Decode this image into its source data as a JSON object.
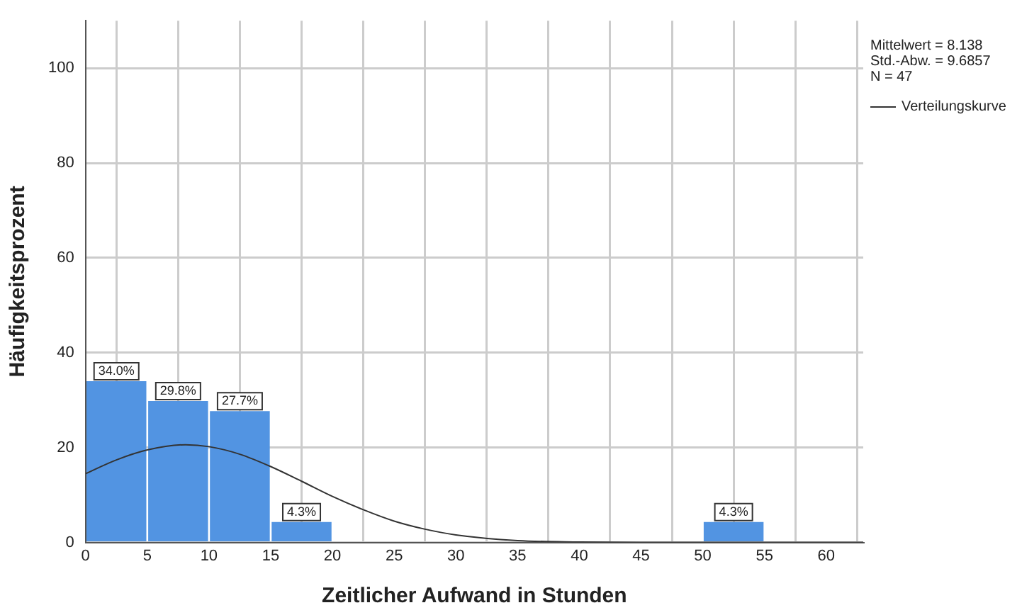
{
  "chart_data": {
    "type": "histogram",
    "xlabel": "Zeitlicher Aufwand in Stunden",
    "ylabel": "Häufigkeitsprozent",
    "bins": [
      0,
      5,
      10,
      15,
      20,
      25,
      30,
      35,
      40,
      45,
      50,
      55
    ],
    "values": [
      34.0,
      29.8,
      27.7,
      4.3,
      0,
      0,
      0,
      0,
      0,
      0,
      4.3
    ],
    "value_labels": [
      "34.0%",
      "29.8%",
      "27.7%",
      "4.3%",
      null,
      null,
      null,
      null,
      null,
      null,
      "4.3%"
    ],
    "color": "#5294e2",
    "series": [
      {
        "type": "line",
        "name": "Verteilungskurve",
        "color": "#333333",
        "x": [
          0,
          2.5,
          5,
          8.1,
          10,
          12.5,
          15,
          17.5,
          20,
          22.5,
          25,
          27.5,
          30,
          35,
          40,
          45,
          50,
          55,
          63
        ],
        "values": [
          14.5,
          17.4,
          19.5,
          20.6,
          20.2,
          18.6,
          16.0,
          12.9,
          9.7,
          6.9,
          4.5,
          2.8,
          1.6,
          0.4,
          0.1,
          0,
          0,
          0,
          0
        ]
      }
    ],
    "xlim": [
      0,
      63
    ],
    "xticks": [
      0,
      5,
      10,
      15,
      20,
      25,
      30,
      35,
      40,
      45,
      50,
      55,
      60
    ],
    "ylim": [
      0,
      110
    ],
    "yticks": [
      0,
      20,
      40,
      60,
      80,
      100
    ],
    "grid": true,
    "legend": "top right",
    "marker": "none",
    "line_style": "solid",
    "annotations": [
      "Mittelwert = 8.138",
      "Std.-Abw. = 9.6857",
      "N = 47"
    ]
  }
}
